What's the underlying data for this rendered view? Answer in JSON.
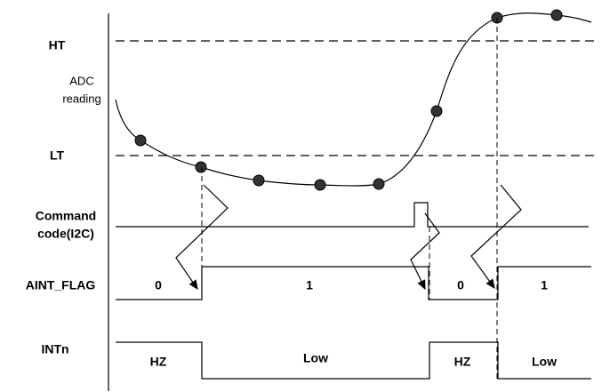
{
  "signals": {
    "ht": "HT",
    "adc_reading": [
      "ADC",
      "reading"
    ],
    "lt": "LT",
    "command_code": [
      "Command",
      "code(I2C)"
    ],
    "aint_flag": {
      "label": "AINT_FLAG",
      "states": [
        "0",
        "1",
        "0",
        "1"
      ]
    },
    "intn": {
      "label": "INTn",
      "states": [
        "HZ",
        "Low",
        "HZ",
        "Low"
      ]
    }
  }
}
